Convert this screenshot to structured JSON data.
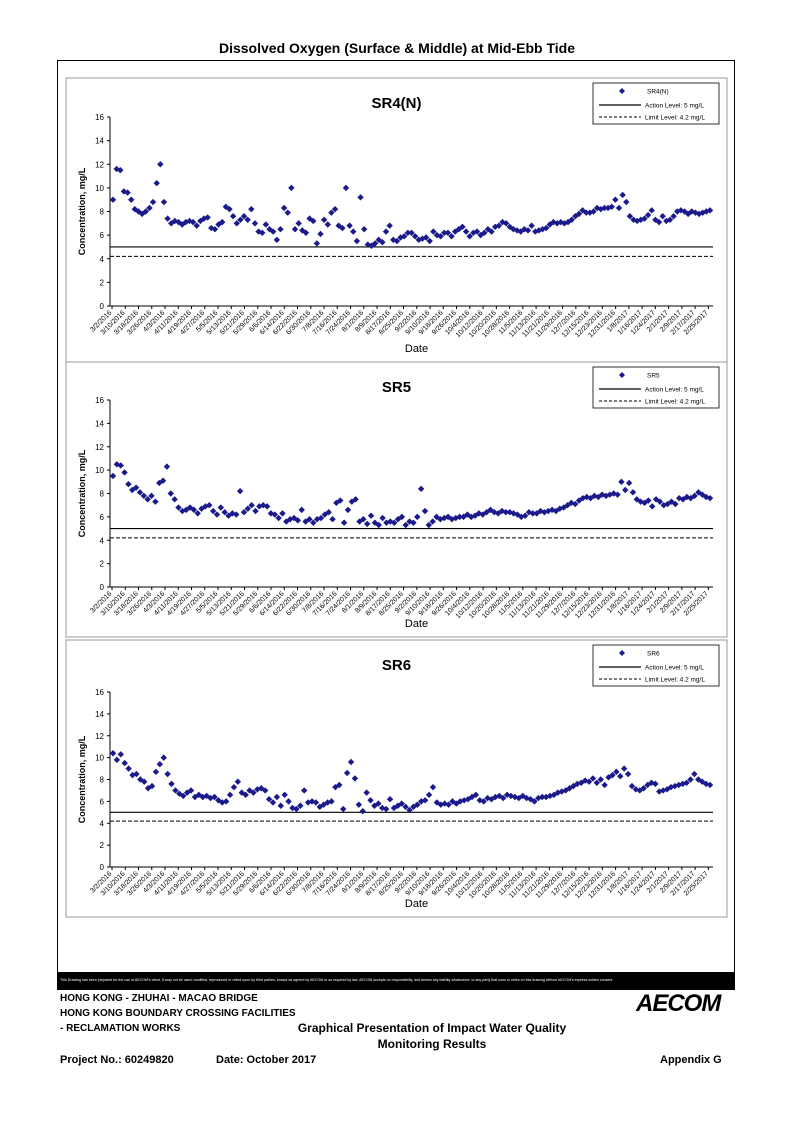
{
  "page_title": "Dissolved Oxygen (Surface & Middle) at Mid-Ebb Tide",
  "disclaimer": "This Drawing has been prepared for the use of AECOM's client. It may not be used, modified, reproduced or relied upon by third parties, except as agreed by AECOM or as required by law. AECOM accepts no responsibility, and denies any liability whatsoever, to any party that uses or relies on this drawing without AECOM's express written consent.",
  "footer": {
    "line1": "HONG KONG - ZHUHAI - MACAO BRIDGE",
    "line2": "HONG KONG BOUNDARY CROSSING FACILITIES",
    "line3": "- RECLAMATION WORKS",
    "doc_title_1": "Graphical Presentation of Impact Water Quality",
    "doc_title_2": "Monitoring Results",
    "project": "Project No.: 60249820",
    "date": "Date: October 2017",
    "appendix": "Appendix G",
    "logo": "AECOM"
  },
  "colors": {
    "marker": "#1a1a8c",
    "line": "#000000"
  },
  "chart_data": [
    {
      "type": "scatter",
      "title": "SR4(N)",
      "xlabel": "Date",
      "ylabel": "Concentration, mg/L",
      "ylim": [
        0,
        16
      ],
      "yticks": [
        "0",
        "2",
        "4",
        "6",
        "8",
        "10",
        "12",
        "14",
        "16"
      ],
      "xticks": [
        "3/2/2016",
        "3/10/2016",
        "3/18/2016",
        "3/26/2016",
        "4/3/2016",
        "4/11/2016",
        "4/19/2016",
        "4/27/2016",
        "5/5/2016",
        "5/13/2016",
        "5/21/2016",
        "5/29/2016",
        "6/6/2016",
        "6/14/2016",
        "6/22/2016",
        "6/30/2016",
        "7/8/2016",
        "7/16/2016",
        "7/24/2016",
        "8/1/2016",
        "8/9/2016",
        "8/17/2016",
        "8/25/2016",
        "9/2/2016",
        "9/10/2016",
        "9/18/2016",
        "9/26/2016",
        "10/4/2016",
        "10/12/2016",
        "10/20/2016",
        "10/28/2016",
        "11/5/2016",
        "11/13/2016",
        "11/21/2016",
        "11/29/2016",
        "12/7/2016",
        "12/15/2016",
        "12/23/2016",
        "12/31/2016",
        "1/8/2017",
        "1/16/2017",
        "1/24/2017",
        "2/1/2017",
        "2/9/2017",
        "2/17/2017",
        "2/25/2017"
      ],
      "legend": {
        "position": "top-right",
        "series": "SR4(N)",
        "action": "Action Level: 5 mg/L",
        "limit": "Limit Level: 4.2 mg/L"
      },
      "action_level": 5,
      "limit_level": 4.2,
      "values": [
        9.0,
        11.6,
        11.5,
        9.7,
        9.6,
        9.0,
        8.2,
        8.0,
        7.8,
        8.0,
        8.3,
        8.8,
        10.4,
        12.0,
        8.8,
        7.4,
        7.0,
        7.2,
        7.1,
        6.9,
        7.1,
        7.2,
        7.1,
        6.8,
        7.2,
        7.4,
        7.5,
        6.6,
        6.5,
        6.9,
        7.1,
        8.4,
        8.2,
        7.6,
        7.0,
        7.3,
        7.6,
        7.3,
        8.2,
        7.0,
        6.3,
        6.2,
        6.9,
        6.5,
        6.3,
        5.6,
        6.5,
        8.3,
        7.9,
        10.0,
        6.5,
        7.0,
        6.4,
        6.2,
        7.4,
        7.2,
        5.3,
        6.1,
        7.3,
        6.9,
        7.9,
        8.2,
        6.8,
        6.6,
        10.0,
        6.8,
        6.3,
        5.5,
        9.2,
        6.5,
        5.2,
        5.1,
        5.3,
        5.6,
        5.4,
        6.3,
        6.8,
        5.6,
        5.5,
        5.8,
        5.9,
        6.2,
        6.2,
        5.9,
        5.6,
        5.7,
        5.8,
        5.5,
        6.3,
        6.0,
        5.9,
        6.2,
        6.2,
        5.9,
        6.3,
        6.5,
        6.7,
        6.3,
        5.9,
        6.2,
        6.3,
        6.0,
        6.2,
        6.5,
        6.3,
        6.7,
        6.8,
        7.1,
        7.0,
        6.7,
        6.5,
        6.4,
        6.3,
        6.5,
        6.4,
        6.8,
        6.3,
        6.4,
        6.5,
        6.6,
        6.9,
        7.1,
        7.0,
        7.1,
        7.0,
        7.1,
        7.3,
        7.6,
        7.8,
        8.1,
        7.9,
        7.9,
        8.0,
        8.3,
        8.2,
        8.3,
        8.3,
        8.4,
        9.0,
        8.3,
        9.4,
        8.8,
        7.6,
        7.3,
        7.2,
        7.3,
        7.4,
        7.7,
        8.1,
        7.3,
        7.1,
        7.6,
        7.2,
        7.3,
        7.6,
        8.0,
        8.1,
        8.0,
        7.8,
        8.0,
        7.9,
        7.8,
        7.9,
        8.0,
        8.1
      ]
    },
    {
      "type": "scatter",
      "title": "SR5",
      "xlabel": "Date",
      "ylabel": "Concentration, mg/L",
      "ylim": [
        0,
        16
      ],
      "yticks": [
        "0",
        "2",
        "4",
        "6",
        "8",
        "10",
        "12",
        "14",
        "16"
      ],
      "xticks": [
        "3/2/2016",
        "3/10/2016",
        "3/18/2016",
        "3/26/2016",
        "4/3/2016",
        "4/11/2016",
        "4/19/2016",
        "4/27/2016",
        "5/5/2016",
        "5/13/2016",
        "5/21/2016",
        "5/29/2016",
        "6/6/2016",
        "6/14/2016",
        "6/22/2016",
        "6/30/2016",
        "7/8/2016",
        "7/16/2016",
        "7/24/2016",
        "8/1/2016",
        "8/9/2016",
        "8/17/2016",
        "8/25/2016",
        "9/2/2016",
        "9/10/2016",
        "9/18/2016",
        "9/26/2016",
        "10/4/2016",
        "10/12/2016",
        "10/20/2016",
        "10/28/2016",
        "11/5/2016",
        "11/13/2016",
        "11/21/2016",
        "11/29/2016",
        "12/7/2016",
        "12/15/2016",
        "12/23/2016",
        "12/31/2016",
        "1/8/2017",
        "1/16/2017",
        "1/24/2017",
        "2/1/2017",
        "2/9/2017",
        "2/17/2017",
        "2/25/2017"
      ],
      "legend": {
        "position": "top-right",
        "series": "SR5",
        "action": "Action Level: 5 mg/L",
        "limit": "Limit Level: 4.2 mg/L"
      },
      "action_level": 5,
      "limit_level": 4.2,
      "values": [
        9.5,
        10.5,
        10.4,
        9.8,
        8.8,
        8.3,
        8.5,
        8.1,
        7.8,
        7.5,
        7.8,
        7.3,
        8.9,
        9.1,
        10.3,
        8.0,
        7.5,
        6.8,
        6.5,
        6.6,
        6.8,
        6.6,
        6.3,
        6.7,
        6.9,
        7.0,
        6.5,
        6.2,
        6.8,
        6.4,
        6.1,
        6.3,
        6.2,
        8.2,
        6.4,
        6.7,
        7.0,
        6.5,
        6.9,
        7.0,
        6.9,
        6.3,
        6.2,
        5.9,
        6.3,
        5.6,
        5.8,
        5.9,
        5.7,
        6.6,
        5.6,
        5.8,
        5.5,
        5.8,
        5.9,
        6.2,
        6.4,
        5.8,
        7.2,
        7.4,
        5.5,
        6.6,
        7.3,
        7.5,
        5.6,
        5.8,
        5.4,
        6.1,
        5.5,
        5.3,
        5.9,
        5.5,
        5.6,
        5.5,
        5.8,
        6.0,
        5.3,
        5.6,
        5.5,
        6.0,
        8.4,
        6.5,
        5.3,
        5.6,
        6.0,
        5.8,
        5.9,
        6.0,
        5.8,
        5.9,
        6.0,
        6.0,
        6.2,
        6.0,
        6.1,
        6.3,
        6.2,
        6.4,
        6.6,
        6.4,
        6.3,
        6.5,
        6.4,
        6.4,
        6.3,
        6.2,
        6.0,
        6.1,
        6.4,
        6.3,
        6.3,
        6.5,
        6.4,
        6.5,
        6.6,
        6.5,
        6.7,
        6.8,
        7.0,
        7.2,
        7.1,
        7.4,
        7.6,
        7.7,
        7.6,
        7.8,
        7.7,
        7.9,
        7.8,
        7.9,
        8.0,
        7.9,
        9.0,
        8.3,
        8.9,
        8.1,
        7.5,
        7.3,
        7.2,
        7.4,
        6.9,
        7.5,
        7.3,
        7.0,
        7.1,
        7.3,
        7.1,
        7.6,
        7.5,
        7.7,
        7.6,
        7.8,
        8.1,
        7.9,
        7.7,
        7.6
      ]
    },
    {
      "type": "scatter",
      "title": "SR6",
      "xlabel": "Date",
      "ylabel": "Concentration, mg/L",
      "ylim": [
        0,
        16
      ],
      "yticks": [
        "0",
        "2",
        "4",
        "6",
        "8",
        "10",
        "12",
        "14",
        "16"
      ],
      "xticks": [
        "3/2/2016",
        "3/10/2016",
        "3/18/2016",
        "3/26/2016",
        "4/3/2016",
        "4/11/2016",
        "4/19/2016",
        "4/27/2016",
        "5/5/2016",
        "5/13/2016",
        "5/21/2016",
        "5/29/2016",
        "6/6/2016",
        "6/14/2016",
        "6/22/2016",
        "6/30/2016",
        "7/8/2016",
        "7/16/2016",
        "7/24/2016",
        "8/1/2016",
        "8/9/2016",
        "8/17/2016",
        "8/25/2016",
        "9/2/2016",
        "9/10/2016",
        "9/18/2016",
        "9/26/2016",
        "10/4/2016",
        "10/12/2016",
        "10/20/2016",
        "10/28/2016",
        "11/5/2016",
        "11/13/2016",
        "11/21/2016",
        "11/29/2016",
        "12/7/2016",
        "12/15/2016",
        "12/23/2016",
        "12/31/2016",
        "1/8/2017",
        "1/16/2017",
        "1/24/2017",
        "2/1/2017",
        "2/9/2017",
        "2/17/2017",
        "2/25/2017"
      ],
      "legend": {
        "position": "top-right",
        "series": "SR6",
        "action": "Action Level: 5 mg/L",
        "limit": "Limit Level: 4.2 mg/L"
      },
      "action_level": 5,
      "limit_level": 4.2,
      "values": [
        10.4,
        9.8,
        10.3,
        9.5,
        9.0,
        8.4,
        8.5,
        8.0,
        7.8,
        7.2,
        7.4,
        8.7,
        9.4,
        10.0,
        8.5,
        7.6,
        7.0,
        6.7,
        6.5,
        6.8,
        7.0,
        6.4,
        6.6,
        6.4,
        6.5,
        6.3,
        6.4,
        6.1,
        5.9,
        6.0,
        6.6,
        7.3,
        7.8,
        6.8,
        6.6,
        7.0,
        6.8,
        7.1,
        7.2,
        7.0,
        6.2,
        5.9,
        6.4,
        5.6,
        6.6,
        6.0,
        5.4,
        5.3,
        5.6,
        7.0,
        5.9,
        6.0,
        5.9,
        5.5,
        5.7,
        5.9,
        6.0,
        7.3,
        7.5,
        5.3,
        8.6,
        9.6,
        8.1,
        5.7,
        5.1,
        6.8,
        6.1,
        5.6,
        5.8,
        5.4,
        5.3,
        6.2,
        5.4,
        5.6,
        5.8,
        5.5,
        5.2,
        5.5,
        5.7,
        6.0,
        6.1,
        6.6,
        7.3,
        5.9,
        5.7,
        5.8,
        5.7,
        6.0,
        5.8,
        6.0,
        6.1,
        6.2,
        6.4,
        6.6,
        6.1,
        6.0,
        6.3,
        6.2,
        6.4,
        6.5,
        6.3,
        6.6,
        6.5,
        6.4,
        6.3,
        6.5,
        6.3,
        6.2,
        6.0,
        6.3,
        6.4,
        6.4,
        6.5,
        6.6,
        6.8,
        6.9,
        7.0,
        7.2,
        7.4,
        7.6,
        7.7,
        7.9,
        7.8,
        8.1,
        7.7,
        8.0,
        7.5,
        8.2,
        8.4,
        8.7,
        8.3,
        9.0,
        8.5,
        7.4,
        7.1,
        7.0,
        7.2,
        7.5,
        7.7,
        7.6,
        6.9,
        7.0,
        7.1,
        7.3,
        7.4,
        7.5,
        7.6,
        7.7,
        8.0,
        8.5,
        8.0,
        7.8,
        7.6,
        7.5
      ]
    }
  ]
}
